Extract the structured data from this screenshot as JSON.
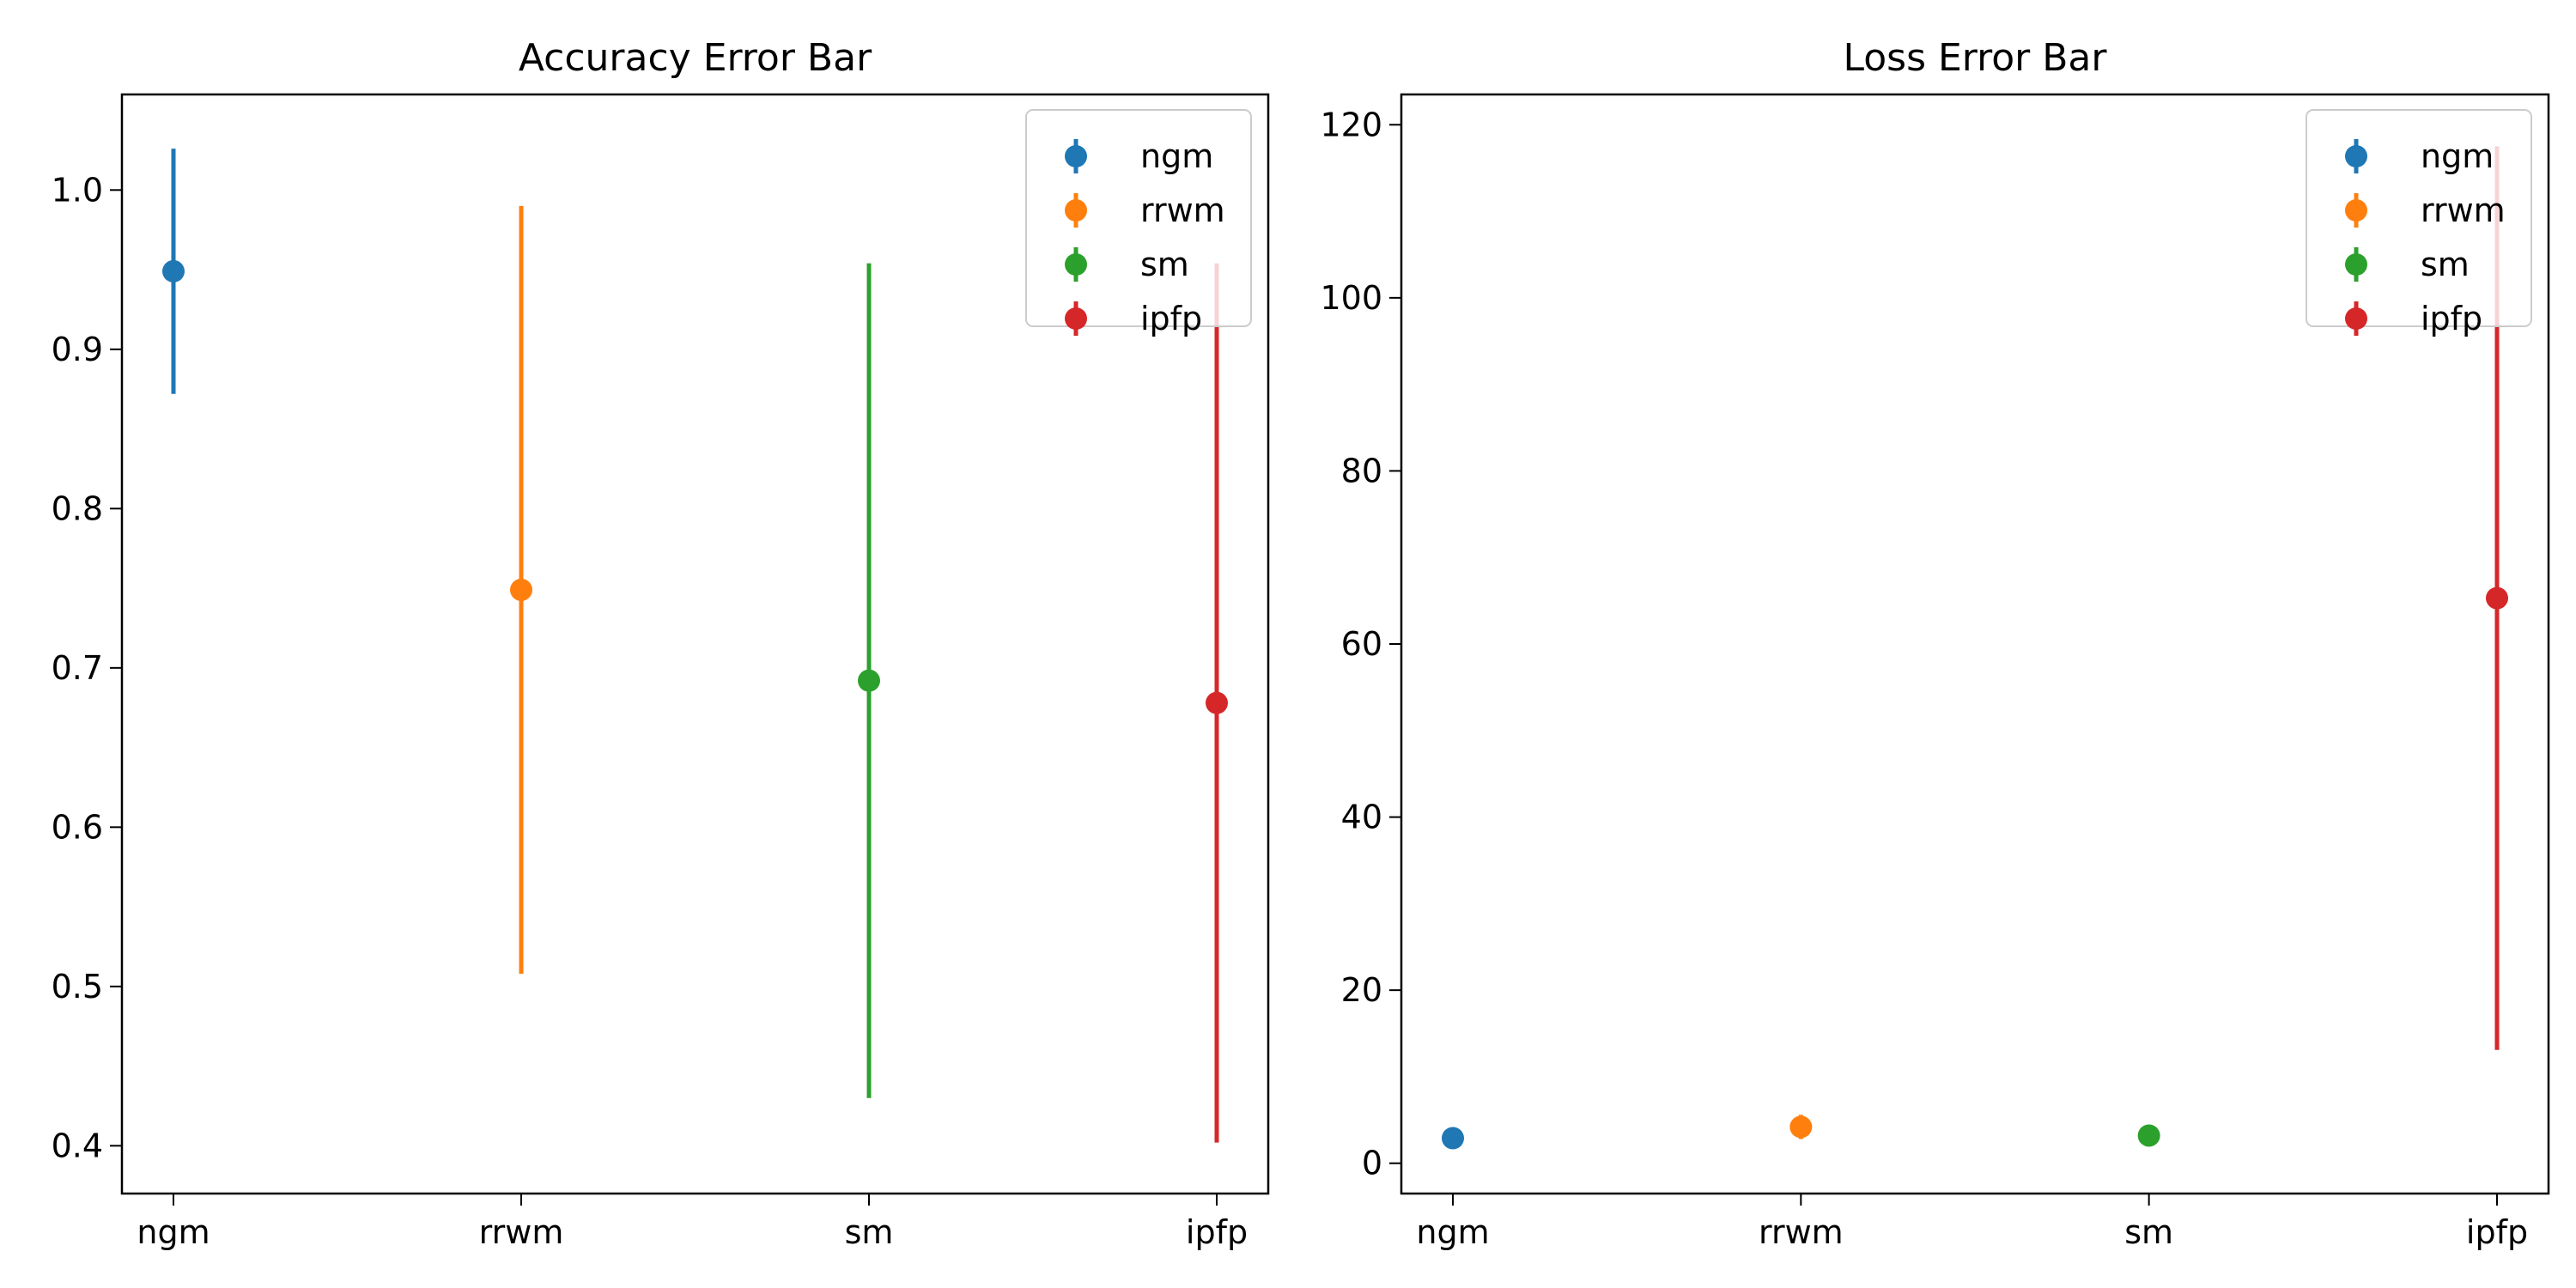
{
  "chart_data": [
    {
      "type": "errorbar",
      "title": "Accuracy Error Bar",
      "xlabel": "",
      "ylabel": "",
      "categories": [
        "ngm",
        "rrwm",
        "sm",
        "ipfp"
      ],
      "ylim": [
        0.37,
        1.06
      ],
      "yticks": [
        0.4,
        0.5,
        0.6,
        0.7,
        0.8,
        0.9,
        1.0
      ],
      "ytick_labels": [
        "0.4",
        "0.5",
        "0.6",
        "0.7",
        "0.8",
        "0.9",
        "1.0"
      ],
      "grid": false,
      "legend_position": "top-right",
      "series": [
        {
          "name": "ngm",
          "color": "#1f77b4",
          "x": 0,
          "y": 0.949,
          "err": 0.077
        },
        {
          "name": "rrwm",
          "color": "#ff7f0e",
          "x": 1,
          "y": 0.749,
          "err": 0.241
        },
        {
          "name": "sm",
          "color": "#2ca02c",
          "x": 2,
          "y": 0.692,
          "err": 0.262
        },
        {
          "name": "ipfp",
          "color": "#d62728",
          "x": 3,
          "y": 0.678,
          "err": 0.276
        }
      ]
    },
    {
      "type": "errorbar",
      "title": "Loss Error Bar",
      "xlabel": "",
      "ylabel": "",
      "categories": [
        "ngm",
        "rrwm",
        "sm",
        "ipfp"
      ],
      "ylim": [
        -3.5,
        123.5
      ],
      "yticks": [
        0,
        20,
        40,
        60,
        80,
        100,
        120
      ],
      "ytick_labels": [
        "0",
        "20",
        "40",
        "60",
        "80",
        "100",
        "120"
      ],
      "grid": false,
      "legend_position": "top-right",
      "series": [
        {
          "name": "ngm",
          "color": "#1f77b4",
          "x": 0,
          "y": 2.9,
          "err": 0.4
        },
        {
          "name": "rrwm",
          "color": "#ff7f0e",
          "x": 1,
          "y": 4.2,
          "err": 1.4
        },
        {
          "name": "sm",
          "color": "#2ca02c",
          "x": 2,
          "y": 3.2,
          "err": 0.5
        },
        {
          "name": "ipfp",
          "color": "#d62728",
          "x": 3,
          "y": 65.3,
          "err": 52.2
        }
      ]
    }
  ]
}
